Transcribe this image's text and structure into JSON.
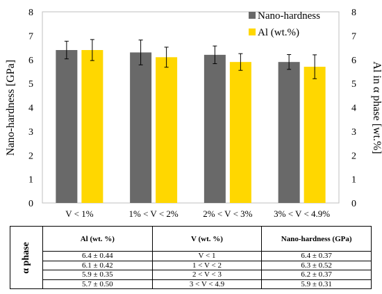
{
  "chart_data": {
    "type": "bar",
    "categories": [
      "V < 1%",
      "1% < V < 2%",
      "2% < V < 3%",
      "3% < V < 4.9%"
    ],
    "series": [
      {
        "name": "Nano-hardness",
        "values": [
          6.4,
          6.3,
          6.2,
          5.9
        ],
        "errors": [
          0.37,
          0.52,
          0.37,
          0.31
        ],
        "color": "#696969",
        "axis": "left"
      },
      {
        "name": "Al (wt.%)",
        "values": [
          6.4,
          6.1,
          5.9,
          5.7
        ],
        "errors": [
          0.44,
          0.42,
          0.35,
          0.5
        ],
        "color": "#FFD700",
        "axis": "right"
      }
    ],
    "ylabel": "Nano-hardness [GPa]",
    "y2label": "Al in α phase [wt.%]",
    "ylim": [
      0,
      8
    ],
    "y2lim": [
      0,
      8
    ],
    "yticks": [
      "0",
      "1",
      "2",
      "3",
      "4",
      "5",
      "6",
      "7",
      "8"
    ],
    "legend_position": "top-right",
    "grid": false
  },
  "table": {
    "row_header": "α phase",
    "columns": [
      "Al (wt. %)",
      "V (wt. %)",
      "Nano-hardness (GPa)"
    ],
    "rows": [
      [
        "6.4 ± 0.44",
        "V < 1",
        "6.4 ± 0.37"
      ],
      [
        "6.1 ± 0.42",
        "1 < V < 2",
        "6.3 ± 0.52"
      ],
      [
        "5.9 ± 0.35",
        "2 < V < 3",
        "6.2 ± 0.37"
      ],
      [
        "5.7 ± 0.50",
        "3 < V < 4.9",
        "5.9 ± 0.31"
      ]
    ]
  }
}
